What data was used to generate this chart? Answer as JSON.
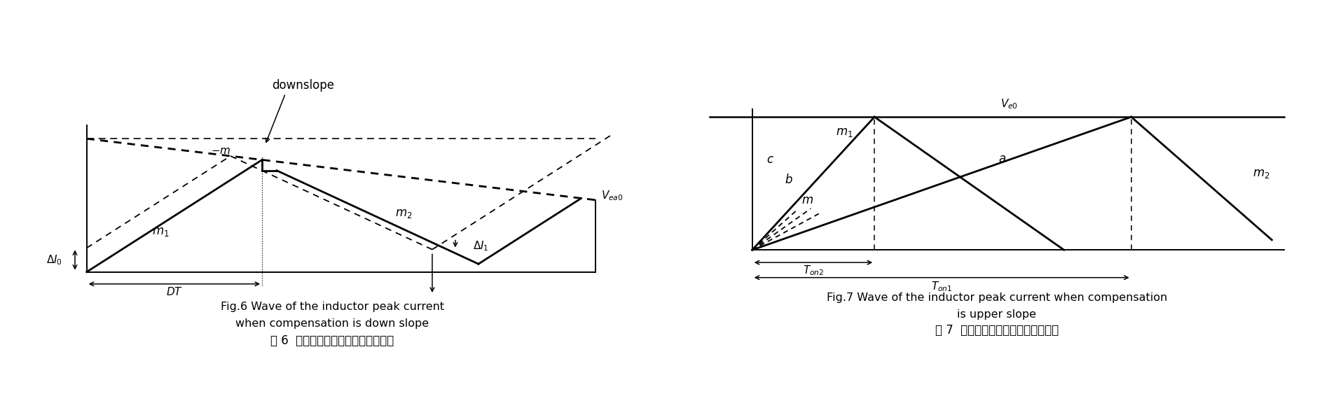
{
  "fig6": {
    "caption_en1": "Fig.6 Wave of the inductor peak current",
    "caption_en2": "when compensation is down slope",
    "caption_cn": "图 6  下斜坡补偿时电感峰值电流波形",
    "downslope_label": "downslope",
    "Vea0_label": "$V_{ea0}$",
    "minus_m_label": "$-m$",
    "m1_label": "$m_1$",
    "m2_label": "$m_2$",
    "DeltaI0_label": "$\\Delta I_0$",
    "DeltaI1_label": "$\\Delta I_1$",
    "DT_label": "$DT$"
  },
  "fig7": {
    "caption_en1": "Fig.7 Wave of the inductor peak current when compensation",
    "caption_en2": "is upper slope",
    "caption_cn": "图 7  上斜坡补偿的电感峰值电流波形",
    "Vea0_label": "$V_{e0}$",
    "m1_label": "$m_1$",
    "m2_label": "$m_2$",
    "a_label": "$a$",
    "b_label": "$b$",
    "c_label": "$c$",
    "m_label": "$m$",
    "Ton2_label": "$T_{on2}$",
    "Ton1_label": "$T_{on1}$"
  }
}
